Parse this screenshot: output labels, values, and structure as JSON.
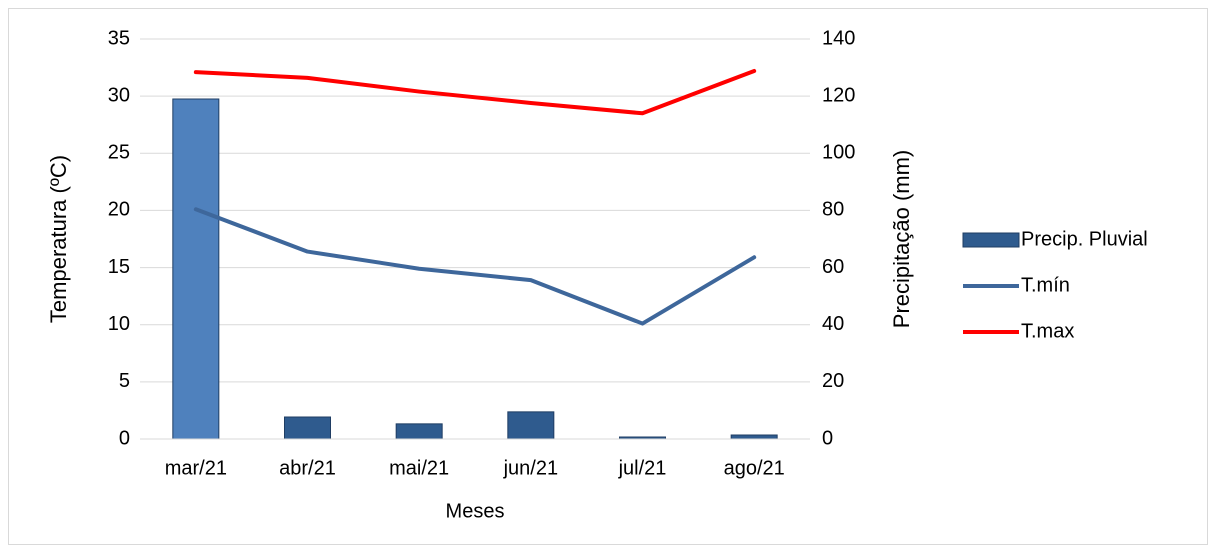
{
  "chart_data": {
    "type": "bar-line",
    "x_label": "Meses",
    "y_label": "Temperatura (ºC)",
    "y2_label": "Precipitação (mm)",
    "categories": [
      "mar/21",
      "abr/21",
      "mai/21",
      "jun/21",
      "jul/21",
      "ago/21"
    ],
    "series": [
      {
        "name": "Precip. Pluvial",
        "type": "bar",
        "axis": "y2",
        "color": "#2f5b8e",
        "colors": [
          "#4f81bd",
          "#2f5b8e",
          "#2f5b8e",
          "#2f5b8e",
          "#2f5b8e",
          "#2f5b8e"
        ],
        "values": [
          119,
          7.7,
          5.3,
          9.5,
          0.7,
          1.4
        ]
      },
      {
        "name": "T.mín",
        "type": "line",
        "color": "#3e679b",
        "values": [
          20.1,
          16.4,
          14.9,
          13.9,
          10.1,
          15.9
        ]
      },
      {
        "name": "T.max",
        "type": "line",
        "color": "#ff0000",
        "values": [
          32.1,
          31.6,
          30.4,
          29.4,
          28.5,
          32.2
        ]
      }
    ],
    "ylim": [
      0,
      35
    ],
    "yticks": [
      0,
      5,
      10,
      15,
      20,
      25,
      30,
      35
    ],
    "y2lim": [
      0,
      140
    ],
    "y2ticks": [
      0,
      20,
      40,
      60,
      80,
      100,
      120,
      140
    ],
    "grid": true,
    "legend": "right"
  }
}
